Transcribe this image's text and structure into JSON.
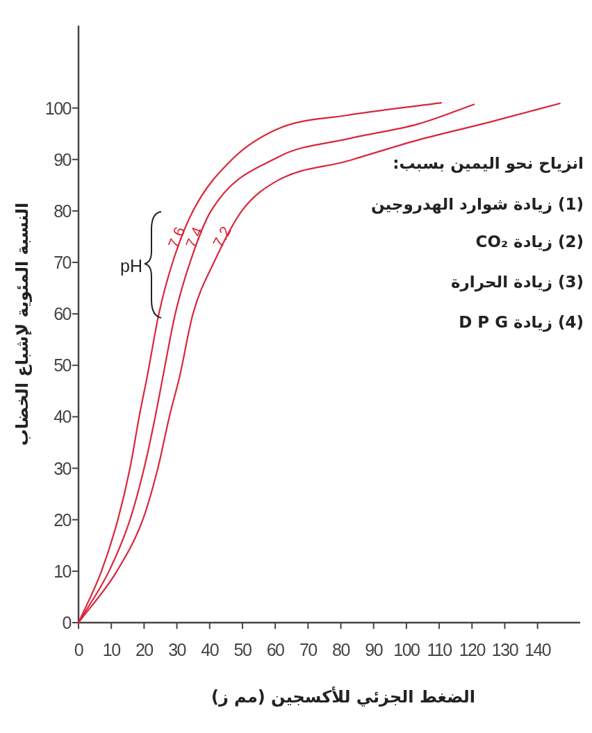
{
  "chart_data": {
    "type": "line",
    "xlabel": "الضغط الجزئي للأكسجين (مم ز)",
    "ylabel": "النسبة المئوية لإشباع الخضاب",
    "xlim": [
      0,
      153
    ],
    "xticks": [
      0,
      10,
      20,
      30,
      40,
      50,
      60,
      70,
      80,
      90,
      100,
      110,
      120,
      130,
      140
    ],
    "ylim": [
      0,
      116
    ],
    "yticks": [
      0,
      10,
      20,
      30,
      40,
      50,
      60,
      70,
      80,
      90,
      100
    ],
    "grid": false,
    "marker": "none",
    "line_style": "solid",
    "annotations": [
      "pH",
      "انزياح نحو اليمين بسبب:",
      "(1) زيادة شوارد الهدروجين",
      "(2) زيادة CO₂",
      "(3) زيادة الحرارة",
      "(4) زيادة D P G"
    ],
    "series": [
      {
        "name": "7.6",
        "color": "#d9263a",
        "x": [
          0,
          7,
          12,
          15.7,
          18.5,
          21,
          24.5,
          28.7,
          34.9,
          46.8,
          61,
          82,
          110.6
        ],
        "values": [
          0,
          10,
          20,
          30,
          40,
          48,
          60,
          70,
          80,
          90,
          96,
          98.6,
          101
        ]
      },
      {
        "name": "7.4",
        "color": "#d9263a",
        "x": [
          0,
          9.3,
          15.7,
          20,
          23.4,
          25.8,
          29.5,
          34,
          40.4,
          61,
          82,
          103.6,
          120.6
        ],
        "values": [
          0,
          10,
          20,
          30,
          40,
          48,
          60,
          70,
          80,
          90.5,
          94,
          96.9,
          100.7
        ]
      },
      {
        "name": "7.2",
        "color": "#d9263a",
        "x": [
          0,
          11.7,
          19.6,
          24.2,
          27.7,
          30.9,
          34.9,
          41.3,
          49.8,
          61,
          82,
          103.6,
          125,
          146.8
        ],
        "values": [
          0,
          10,
          20,
          30,
          40,
          48,
          60,
          70,
          80,
          86,
          89.7,
          93.8,
          97.2,
          100.9
        ]
      }
    ]
  }
}
